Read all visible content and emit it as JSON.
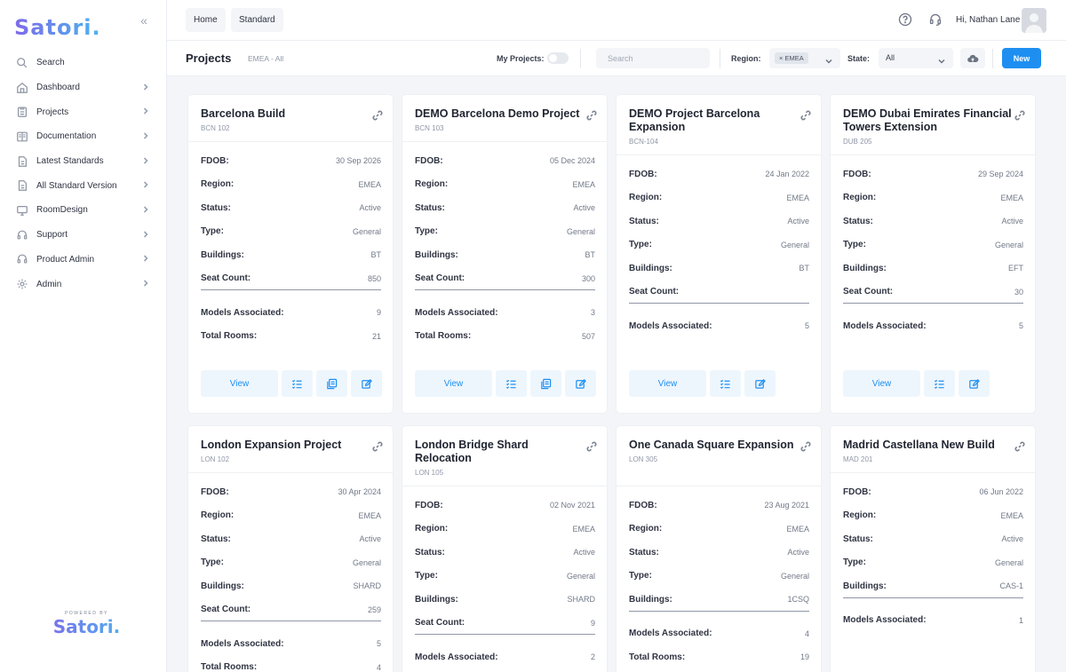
{
  "app": {
    "logo": "Satori.",
    "powered_by": "POWERED BY",
    "powered_logo": "Satori."
  },
  "sidebar": {
    "items": [
      {
        "label": "Search",
        "icon": "search-icon",
        "chevron": false
      },
      {
        "label": "Dashboard",
        "icon": "home-icon",
        "chevron": true
      },
      {
        "label": "Projects",
        "icon": "clipboard-icon",
        "chevron": true
      },
      {
        "label": "Documentation",
        "icon": "book-icon",
        "chevron": true
      },
      {
        "label": "Latest Standards",
        "icon": "file-icon",
        "chevron": true
      },
      {
        "label": "All Standard Version",
        "icon": "file-icon",
        "chevron": true
      },
      {
        "label": "RoomDesign",
        "icon": "monitor-icon",
        "chevron": true
      },
      {
        "label": "Support",
        "icon": "headset-icon",
        "chevron": true
      },
      {
        "label": "Product Admin",
        "icon": "headset-icon",
        "chevron": true
      },
      {
        "label": "Admin",
        "icon": "gear-icon",
        "chevron": true
      }
    ]
  },
  "topbar": {
    "tabs": [
      "Home",
      "Standard"
    ],
    "greeting": "Hi, Nathan Lane"
  },
  "toolbar": {
    "title": "Projects",
    "breadcrumb": "EMEA  -  All",
    "my_projects_label": "My Projects:",
    "my_projects_on": false,
    "search_placeholder": "Search",
    "region_label": "Region:",
    "region_chip": "× EMEA",
    "state_label": "State:",
    "state_value": "All",
    "new_label": "New"
  },
  "colors": {
    "accent": "#1e8ff1",
    "logo_start": "#7e6be8",
    "logo_end": "#4ab4f0"
  },
  "field_labels": {
    "fdob": "FDOB:",
    "region": "Region:",
    "status": "Status:",
    "type": "Type:",
    "buildings": "Buildings:",
    "seat_count": "Seat Count:",
    "models": "Models Associated:",
    "rooms": "Total Rooms:",
    "view": "View"
  },
  "cards": [
    {
      "title": "Barcelona Build",
      "code": "BCN 102",
      "fdob": "30 Sep 2026",
      "region": "EMEA",
      "status": "Active",
      "type": "General",
      "buildings": "BT",
      "seat_count": "850",
      "models": "9",
      "rooms": "21",
      "clone_button": true
    },
    {
      "title": "DEMO Barcelona Demo Project",
      "code": "BCN 103",
      "fdob": "05 Dec 2024",
      "region": "EMEA",
      "status": "Active",
      "type": "General",
      "buildings": "BT",
      "seat_count": "300",
      "models": "3",
      "rooms": "507",
      "clone_button": true
    },
    {
      "title": "DEMO Project Barcelona Expansion",
      "code": "BCN-104",
      "fdob": "24 Jan 2022",
      "region": "EMEA",
      "status": "Active",
      "type": "General",
      "buildings": "BT",
      "seat_count": "",
      "models": "5",
      "rooms": null,
      "clone_button": false
    },
    {
      "title": "DEMO Dubai Emirates Financial Towers Extension",
      "code": "DUB 205",
      "fdob": "29 Sep 2024",
      "region": "EMEA",
      "status": "Active",
      "type": "General",
      "buildings": "EFT",
      "seat_count": "30",
      "models": "5",
      "rooms": null,
      "clone_button": false
    },
    {
      "title": "London Expansion Project",
      "code": "LON 102",
      "fdob": "30 Apr 2024",
      "region": "EMEA",
      "status": "Active",
      "type": "General",
      "buildings": "SHARD",
      "seat_count": "259",
      "models": "5",
      "rooms": "4"
    },
    {
      "title": "London Bridge Shard Relocation",
      "code": "LON 105",
      "fdob": "02 Nov 2021",
      "region": "EMEA",
      "status": "Active",
      "type": "General",
      "buildings": "SHARD",
      "seat_count": "9",
      "models": "2",
      "rooms": null
    },
    {
      "title": "One Canada Square Expansion",
      "code": "LON 305",
      "fdob": "23 Aug 2021",
      "region": "EMEA",
      "status": "Active",
      "type": "General",
      "buildings": "1CSQ",
      "seat_count": null,
      "models": "4",
      "rooms": "19"
    },
    {
      "title": "Madrid Castellana New Build",
      "code": "MAD 201",
      "fdob": "06 Jun 2022",
      "region": "EMEA",
      "status": "Active",
      "type": "General",
      "buildings": "CAS-1",
      "seat_count": null,
      "models": "1",
      "rooms": null
    }
  ]
}
